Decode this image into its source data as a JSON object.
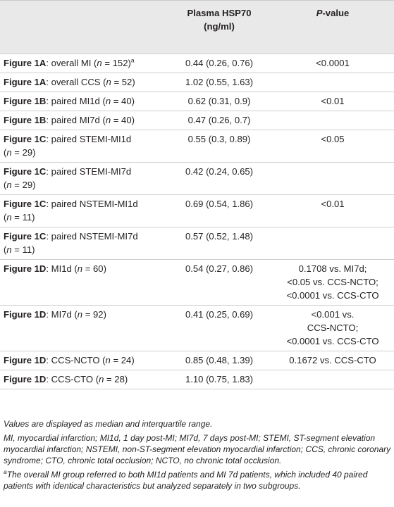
{
  "table": {
    "header": {
      "col2_line1": "Plasma HSP70",
      "col2_line2": "(ng/ml)",
      "col3_italic": "P",
      "col3_rest": "-value"
    },
    "rows": [
      {
        "fig": "Figure 1A",
        "pre": ": overall MI (",
        "n_italic": "n",
        "post": " = 152)",
        "sup": "a",
        "value": "0.44 (0.26, 0.76)",
        "p": [
          "<0.0001"
        ]
      },
      {
        "fig": "Figure 1A",
        "pre": ": overall CCS (",
        "n_italic": "n",
        "post": " = 52)",
        "value": "1.02 (0.55, 1.63)",
        "p": []
      },
      {
        "fig": "Figure 1B",
        "pre": ": paired MI1d (",
        "n_italic": "n",
        "post": " = 40)",
        "value": "0.62 (0.31, 0.9)",
        "p": [
          "<0.01"
        ]
      },
      {
        "fig": "Figure 1B",
        "pre": ": paired MI7d (",
        "n_italic": "n",
        "post": " = 40)",
        "value": "0.47 (0.26, 0.7)",
        "p": []
      },
      {
        "fig": "Figure 1C",
        "pre": ": paired STEMI-MI1d",
        "line2_pre": "(",
        "n_italic": "n",
        "post": " = 29)",
        "value": "0.55 (0.3, 0.89)",
        "p": [
          "<0.05"
        ]
      },
      {
        "fig": "Figure 1C",
        "pre": ": paired STEMI-MI7d",
        "line2_pre": "(",
        "n_italic": "n",
        "post": " = 29)",
        "value": "0.42 (0.24, 0.65)",
        "p": []
      },
      {
        "fig": "Figure 1C",
        "pre": ": paired NSTEMI-MI1d",
        "line2_pre": "(",
        "n_italic": "n",
        "post": " = 11)",
        "value": "0.69 (0.54, 1.86)",
        "p": [
          "<0.01"
        ]
      },
      {
        "fig": "Figure 1C",
        "pre": ": paired NSTEMI-MI7d",
        "line2_pre": "(",
        "n_italic": "n",
        "post": " = 11)",
        "value": "0.57 (0.52, 1.48)",
        "p": []
      },
      {
        "fig": "Figure 1D",
        "pre": ": MI1d (",
        "n_italic": "n",
        "post": " = 60)",
        "value": "0.54 (0.27, 0.86)",
        "p": [
          "0.1708 vs. MI7d;",
          "<0.05 vs. CCS-NCTO;",
          "<0.0001 vs. CCS-CTO"
        ]
      },
      {
        "fig": "Figure 1D",
        "pre": ": MI7d (",
        "n_italic": "n",
        "post": " = 92)",
        "value": "0.41 (0.25, 0.69)",
        "p": [
          "<0.001 vs.",
          "CCS-NCTO;",
          "<0.0001 vs. CCS-CTO"
        ]
      },
      {
        "fig": "Figure 1D",
        "pre": ": CCS-NCTO (",
        "n_italic": "n",
        "post": " = 24)",
        "value": "0.85 (0.48, 1.39)",
        "p": [
          "0.1672 vs. CCS-CTO"
        ]
      },
      {
        "fig": "Figure 1D",
        "pre": ": CCS-CTO (",
        "n_italic": "n",
        "post": " = 28)",
        "value": "1.10 (0.75, 1.83)",
        "p": []
      }
    ]
  },
  "footnotes": {
    "line1": "Values are displayed as median and interquartile range.",
    "line2": "MI, myocardial infarction; MI1d, 1 day post-MI; MI7d, 7 days post-MI; STEMI, ST-segment elevation myocardial infarction; NSTEMI, non-ST-segment elevation myocardial infarction; CCS, chronic coronary syndrome; CTO, chronic total occlusion; NCTO, no chronic total occlusion.",
    "sup": "a",
    "line3": "The overall MI group referred to both MI1d patients and MI 7d patients, which included 40 paired patients with identical characteristics but analyzed separately in two subgroups."
  }
}
